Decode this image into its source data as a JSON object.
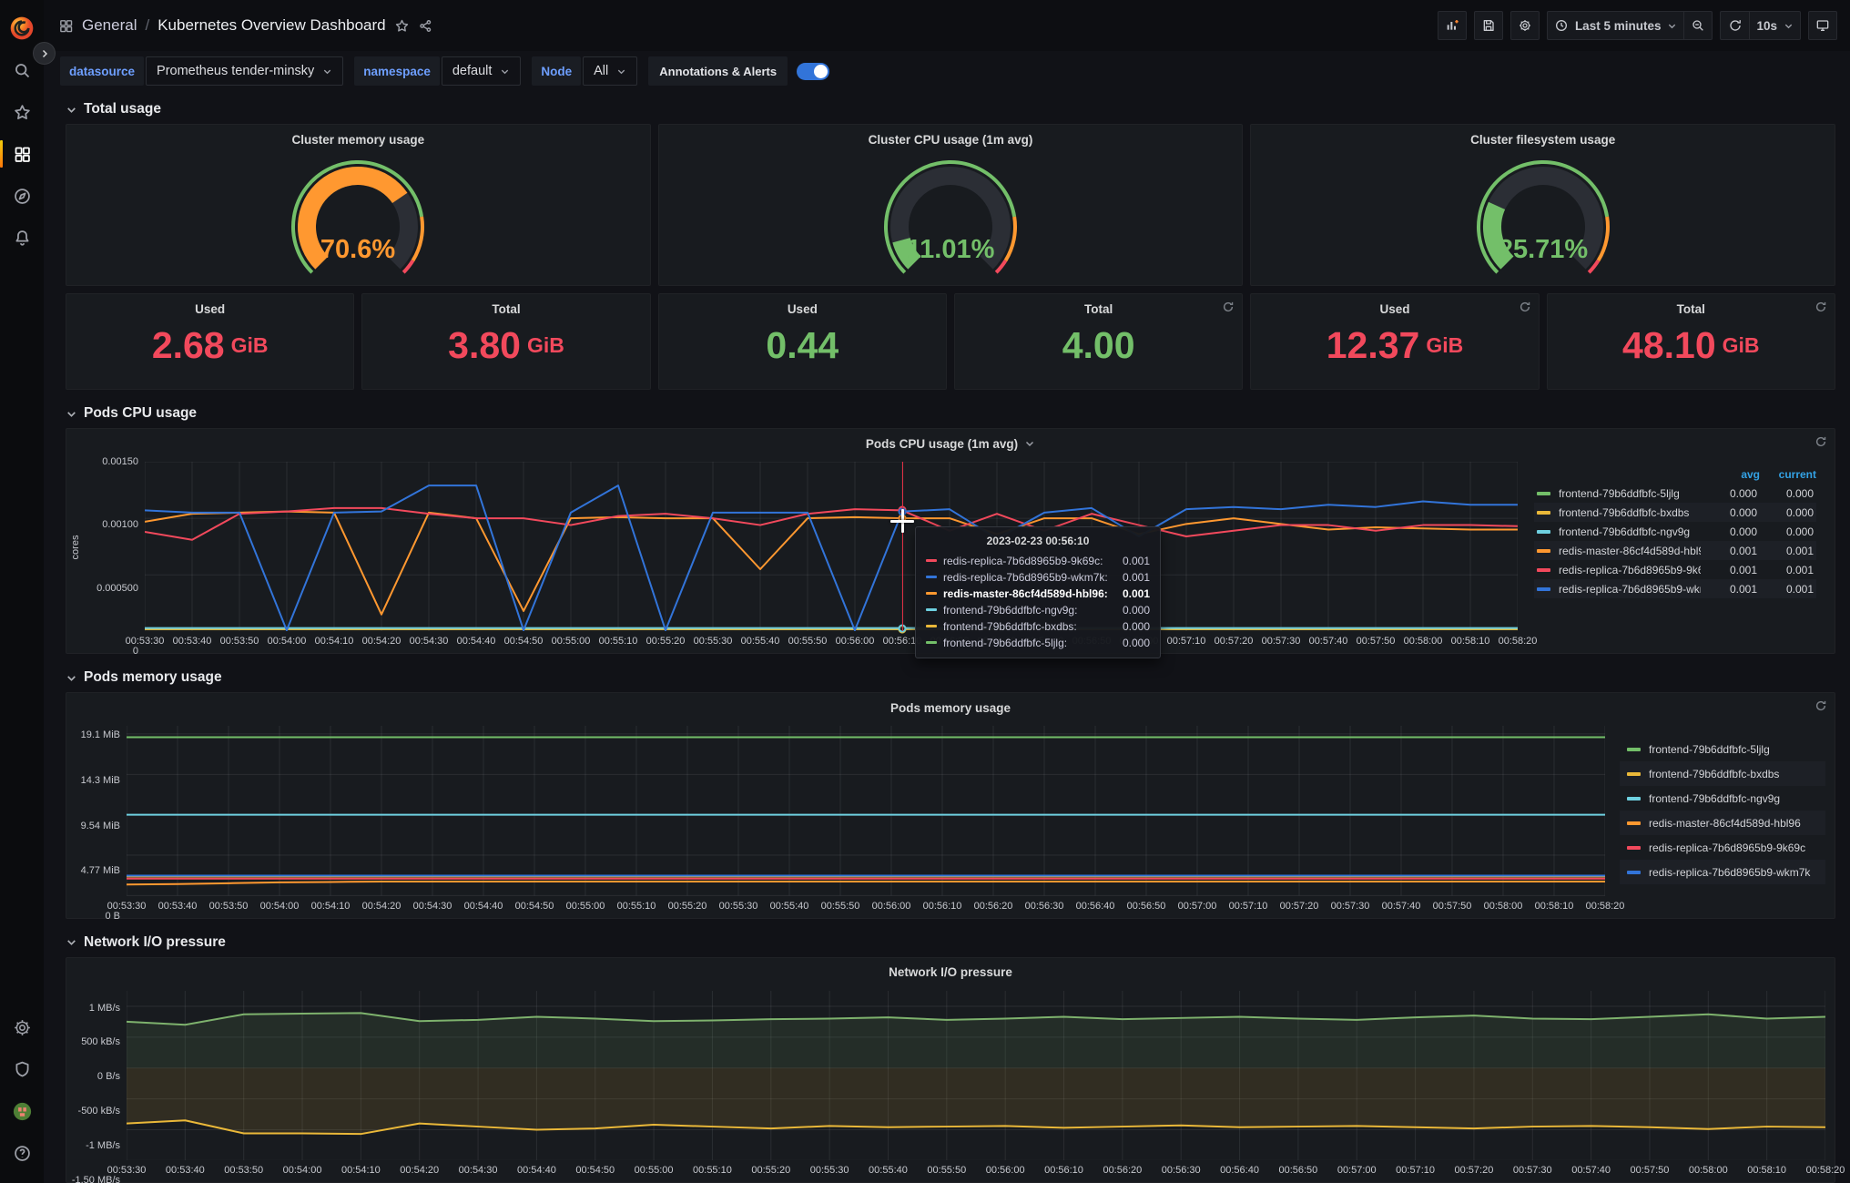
{
  "header": {
    "breadcrumb": {
      "section": "General",
      "separator": "/",
      "page": "Kubernetes Overview Dashboard"
    },
    "time_range": "Last 5 minutes",
    "refresh_interval": "10s"
  },
  "sidebar": {
    "top_icons": [
      "grafana-logo",
      "expand",
      "search",
      "starred",
      "dashboards",
      "explore",
      "alerting"
    ],
    "bottom_icons": [
      "configuration",
      "server-admin",
      "profile",
      "help"
    ]
  },
  "variables": {
    "datasource_label": "datasource",
    "datasource_value": "Prometheus tender-minsky",
    "namespace_label": "namespace",
    "namespace_value": "default",
    "node_label": "Node",
    "node_value": "All",
    "annotations_label": "Annotations & Alerts",
    "annotations_on": true
  },
  "sections": {
    "total_usage": "Total usage",
    "pods_cpu": "Pods CPU usage",
    "pods_memory": "Pods memory usage",
    "network": "Network I/O pressure"
  },
  "colors": {
    "red": "#F2495C",
    "green": "#73BF69",
    "orange": "#FF9830",
    "blue": "#3274D9",
    "yellow": "#EAB839",
    "teal": "#6ED0E0",
    "net_green": "#7EB26D",
    "legend_header": "#33A2E5"
  },
  "gauge_thresholds": [
    {
      "color": "#73BF69",
      "to": 0.8
    },
    {
      "color": "#FF9830",
      "to": 0.95
    },
    {
      "color": "#F2495C",
      "to": 1
    }
  ],
  "gauges": [
    {
      "title": "Cluster memory usage",
      "percent": 70.6,
      "value_text": "70.6%",
      "color": "#FF9830"
    },
    {
      "title": "Cluster CPU usage (1m avg)",
      "percent": 11.01,
      "value_text": "11.01%",
      "color": "#73BF69"
    },
    {
      "title": "Cluster filesystem usage",
      "percent": 25.71,
      "value_text": "25.71%",
      "color": "#73BF69"
    }
  ],
  "stats": [
    {
      "label": "Used",
      "value": "2.68",
      "suffix": "GiB",
      "color": "#F2495C",
      "refresh": false
    },
    {
      "label": "Total",
      "value": "3.80",
      "suffix": "GiB",
      "color": "#F2495C",
      "refresh": false
    },
    {
      "label": "Used",
      "value": "0.44",
      "suffix": "",
      "color": "#73BF69",
      "refresh": false
    },
    {
      "label": "Total",
      "value": "4.00",
      "suffix": "",
      "color": "#73BF69",
      "refresh": true
    },
    {
      "label": "Used",
      "value": "12.37",
      "suffix": "GiB",
      "color": "#F2495C",
      "refresh": true
    },
    {
      "label": "Total",
      "value": "48.10",
      "suffix": "GiB",
      "color": "#F2495C",
      "refresh": true
    }
  ],
  "tooltip": {
    "time": "2023-02-23 00:56:10",
    "rows": [
      {
        "color": "#F2495C",
        "name": "redis-replica-7b6d8965b9-9k69c:",
        "value": "0.001",
        "bold": false
      },
      {
        "color": "#3274D9",
        "name": "redis-replica-7b6d8965b9-wkm7k:",
        "value": "0.001",
        "bold": false
      },
      {
        "color": "#FF9830",
        "name": "redis-master-86cf4d589d-hbl96:",
        "value": "0.001",
        "bold": true
      },
      {
        "color": "#6ED0E0",
        "name": "frontend-79b6ddfbfc-ngv9g:",
        "value": "0.000",
        "bold": false
      },
      {
        "color": "#EAB839",
        "name": "frontend-79b6ddfbfc-bxdbs:",
        "value": "0.000",
        "bold": false
      },
      {
        "color": "#73BF69",
        "name": "frontend-79b6ddfbfc-5ljlg:",
        "value": "0.000",
        "bold": false
      }
    ]
  },
  "chart_data": [
    {
      "id": "cpu",
      "type": "line",
      "title": "Pods CPU usage (1m avg)",
      "ylabel": "cores",
      "ylim": [
        0,
        0.0015
      ],
      "yticks": [
        {
          "value": 0.0015,
          "label": "0.00150"
        },
        {
          "value": 0.001,
          "label": "0.00100"
        },
        {
          "value": 0.0005,
          "label": "0.000500"
        },
        {
          "value": 0,
          "label": "0"
        }
      ],
      "categories": [
        "00:53:30",
        "00:53:40",
        "00:53:50",
        "00:54:00",
        "00:54:10",
        "00:54:20",
        "00:54:30",
        "00:54:40",
        "00:54:50",
        "00:55:00",
        "00:55:10",
        "00:55:20",
        "00:55:30",
        "00:55:40",
        "00:55:50",
        "00:56:00",
        "00:56:10",
        "00:56:20",
        "00:56:30",
        "00:56:40",
        "00:56:50",
        "00:57:00",
        "00:57:10",
        "00:57:20",
        "00:57:30",
        "00:57:40",
        "00:57:50",
        "00:58:00",
        "00:58:10",
        "00:58:20"
      ],
      "legend": "table",
      "legend_columns": [
        "avg",
        "current"
      ],
      "cursor": {
        "index": 16,
        "crosshair_y": 0.35,
        "line_color": "#e02f44"
      },
      "series": [
        {
          "name": "frontend-79b6ddfbfc-5ljlg",
          "color": "#73BF69",
          "avg": "0.000",
          "current": "0.000",
          "values": 2e-05
        },
        {
          "name": "frontend-79b6ddfbfc-bxdbs",
          "color": "#EAB839",
          "avg": "0.000",
          "current": "0.000",
          "values": 2e-05
        },
        {
          "name": "frontend-79b6ddfbfc-ngv9g",
          "color": "#6ED0E0",
          "avg": "0.000",
          "current": "0.000",
          "values": 3e-05
        },
        {
          "name": "redis-master-86cf4d589d-hbl96",
          "color": "#FF9830",
          "avg": "0.001",
          "current": "0.001",
          "values": [
            0.00097,
            0.00104,
            0.00105,
            0.00106,
            0.00105,
            0.00015,
            0.00105,
            0.001,
            0.00018,
            0.001,
            0.00101,
            0.001,
            0.001,
            0.00055,
            0.001,
            0.00101,
            0.001,
            0.001,
            0.00086,
            0.001,
            0.001,
            0.00086,
            0.00095,
            0.001,
            0.00095,
            0.0009,
            0.00092,
            0.00091,
            0.0009,
            0.0009
          ]
        },
        {
          "name": "redis-replica-7b6d8965b9-9k69c",
          "color": "#F2495C",
          "avg": "0.001",
          "current": "0.001",
          "values": [
            0.00088,
            0.00081,
            0.00104,
            0.00106,
            0.00109,
            0.00109,
            0.00104,
            0.001,
            0.001,
            0.00094,
            0.00102,
            0.00104,
            0.001,
            0.00094,
            0.00104,
            0.00108,
            0.00107,
            0.00089,
            0.00104,
            0.00089,
            0.00104,
            0.00094,
            0.00084,
            0.00089,
            0.00094,
            0.00094,
            0.00089,
            0.00094,
            0.00094,
            0.00093
          ]
        },
        {
          "name": "redis-replica-7b6d8965b9-wkm7k",
          "color": "#3274D9",
          "avg": "0.001",
          "current": "0.001",
          "values": [
            0.00107,
            0.00105,
            0.00105,
            1e-05,
            0.00105,
            0.00106,
            0.00129,
            0.00129,
            1e-05,
            0.00105,
            0.00129,
            1e-05,
            0.00105,
            0.00105,
            0.00105,
            1e-05,
            0.00106,
            0.00108,
            0.00082,
            0.00105,
            0.00109,
            0.00084,
            0.00108,
            0.0011,
            0.00108,
            0.00112,
            0.0011,
            0.00115,
            0.00112,
            0.00112
          ]
        }
      ]
    },
    {
      "id": "memory",
      "type": "line",
      "title": "Pods memory usage",
      "ylabel": "",
      "ylim": [
        0,
        20.05
      ],
      "yticks": [
        {
          "value": 19.1,
          "label": "19.1 MiB"
        },
        {
          "value": 14.3,
          "label": "14.3 MiB"
        },
        {
          "value": 9.54,
          "label": "9.54 MiB"
        },
        {
          "value": 4.77,
          "label": "4.77 MiB"
        },
        {
          "value": 0,
          "label": "0 B"
        }
      ],
      "categories": [
        "00:53:30",
        "00:53:40",
        "00:53:50",
        "00:54:00",
        "00:54:10",
        "00:54:20",
        "00:54:30",
        "00:54:40",
        "00:54:50",
        "00:55:00",
        "00:55:10",
        "00:55:20",
        "00:55:30",
        "00:55:40",
        "00:55:50",
        "00:56:00",
        "00:56:10",
        "00:56:20",
        "00:56:30",
        "00:56:40",
        "00:56:50",
        "00:57:00",
        "00:57:10",
        "00:57:20",
        "00:57:30",
        "00:57:40",
        "00:57:50",
        "00:58:00",
        "00:58:10",
        "00:58:20"
      ],
      "legend": "list",
      "series": [
        {
          "name": "frontend-79b6ddfbfc-5ljlg",
          "color": "#73BF69",
          "values": 18.7
        },
        {
          "name": "frontend-79b6ddfbfc-bxdbs",
          "color": "#EAB839",
          "values": 2.25
        },
        {
          "name": "frontend-79b6ddfbfc-ngv9g",
          "color": "#6ED0E0",
          "values": 9.54
        },
        {
          "name": "redis-master-86cf4d589d-hbl96",
          "color": "#FF9830",
          "values": [
            1.3,
            1.35,
            1.45,
            1.55,
            1.6,
            1.65,
            1.65,
            1.65,
            1.65,
            1.65,
            1.65,
            1.65,
            1.65,
            1.65,
            1.65,
            1.65,
            1.65,
            1.65,
            1.65,
            1.65,
            1.65,
            1.65,
            1.65,
            1.65,
            1.65,
            1.65,
            1.65,
            1.65,
            1.65,
            1.65
          ]
        },
        {
          "name": "redis-replica-7b6d8965b9-9k69c",
          "color": "#F2495C",
          "values": 2.0
        },
        {
          "name": "redis-replica-7b6d8965b9-wkm7k",
          "color": "#3274D9",
          "values": 2.35
        }
      ]
    },
    {
      "id": "network",
      "type": "area",
      "title": "Network I/O pressure",
      "ylabel": "",
      "ylim": [
        -1500,
        1250
      ],
      "yticks": [
        {
          "value": 1000,
          "label": "1 MB/s"
        },
        {
          "value": 500,
          "label": "500 kB/s"
        },
        {
          "value": 0,
          "label": "0 B/s"
        },
        {
          "value": -500,
          "label": "-500 kB/s"
        },
        {
          "value": -1000,
          "label": "-1 MB/s"
        },
        {
          "value": -1500,
          "label": "-1.50 MB/s"
        }
      ],
      "categories": [
        "00:53:30",
        "00:53:40",
        "00:53:50",
        "00:54:00",
        "00:54:10",
        "00:54:20",
        "00:54:30",
        "00:54:40",
        "00:54:50",
        "00:55:00",
        "00:55:10",
        "00:55:20",
        "00:55:30",
        "00:55:40",
        "00:55:50",
        "00:56:00",
        "00:56:10",
        "00:56:20",
        "00:56:30",
        "00:56:40",
        "00:56:50",
        "00:57:00",
        "00:57:10",
        "00:57:20",
        "00:57:30",
        "00:57:40",
        "00:57:50",
        "00:58:00",
        "00:58:10",
        "00:58:20"
      ],
      "legend": null,
      "series": [
        {
          "name": "",
          "color": "#7EB26D",
          "fill": true,
          "values": [
            750,
            700,
            870,
            880,
            890,
            760,
            780,
            830,
            800,
            760,
            770,
            790,
            800,
            820,
            780,
            800,
            830,
            790,
            810,
            830,
            800,
            780,
            820,
            850,
            800,
            790,
            830,
            870,
            800,
            830
          ]
        },
        {
          "name": "",
          "color": "#EAB839",
          "fill": true,
          "values": [
            -900,
            -850,
            -1060,
            -1060,
            -1070,
            -900,
            -950,
            -1000,
            -980,
            -920,
            -950,
            -980,
            -940,
            -960,
            -950,
            -940,
            -970,
            -950,
            -930,
            -960,
            -950,
            -940,
            -960,
            -980,
            -950,
            -940,
            -960,
            -990,
            -950,
            -960
          ]
        }
      ]
    }
  ]
}
